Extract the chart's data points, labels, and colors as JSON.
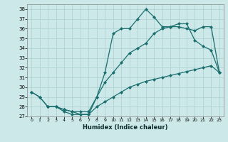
{
  "xlabel": "Humidex (Indice chaleur)",
  "background_color": "#cce8e8",
  "grid_color": "#aacfcf",
  "line_color": "#1a6e6e",
  "xlim": [
    -0.5,
    23.5
  ],
  "ylim": [
    27,
    38.5
  ],
  "yticks": [
    27,
    28,
    29,
    30,
    31,
    32,
    33,
    34,
    35,
    36,
    37,
    38
  ],
  "xticks": [
    0,
    1,
    2,
    3,
    4,
    5,
    6,
    7,
    8,
    9,
    10,
    11,
    12,
    13,
    14,
    15,
    16,
    17,
    18,
    19,
    20,
    21,
    22,
    23
  ],
  "line1_x": [
    0,
    1,
    2,
    3,
    4,
    5,
    6,
    7,
    8,
    9,
    10,
    11,
    12,
    13,
    14,
    15,
    16,
    17,
    18,
    19,
    20,
    21,
    22,
    23
  ],
  "line1_y": [
    29.5,
    29.0,
    28.0,
    28.0,
    27.5,
    27.2,
    27.2,
    27.2,
    28.0,
    28.5,
    29.0,
    29.5,
    30.0,
    30.3,
    30.6,
    30.8,
    31.0,
    31.2,
    31.4,
    31.6,
    31.8,
    32.0,
    32.2,
    31.5
  ],
  "line2_x": [
    0,
    1,
    2,
    3,
    4,
    5,
    6,
    7,
    8,
    9,
    10,
    11,
    12,
    13,
    14,
    15,
    16,
    17,
    18,
    19,
    20,
    21,
    22,
    23
  ],
  "line2_y": [
    29.5,
    29.0,
    28.0,
    28.0,
    27.7,
    27.5,
    27.5,
    27.5,
    29.0,
    30.5,
    31.5,
    32.5,
    33.5,
    34.0,
    34.5,
    35.5,
    36.0,
    36.2,
    36.5,
    36.5,
    34.8,
    34.2,
    33.8,
    31.5
  ],
  "line3_x": [
    2,
    3,
    4,
    5,
    6,
    7,
    8,
    9,
    10,
    11,
    12,
    13,
    14,
    15,
    16,
    17,
    18,
    19,
    20,
    21,
    22,
    23
  ],
  "line3_y": [
    28.0,
    28.0,
    27.7,
    27.5,
    27.2,
    27.2,
    29.0,
    31.5,
    35.5,
    36.0,
    36.0,
    37.0,
    38.0,
    37.2,
    36.2,
    36.2,
    36.2,
    36.0,
    35.8,
    36.2,
    36.2,
    31.5
  ]
}
